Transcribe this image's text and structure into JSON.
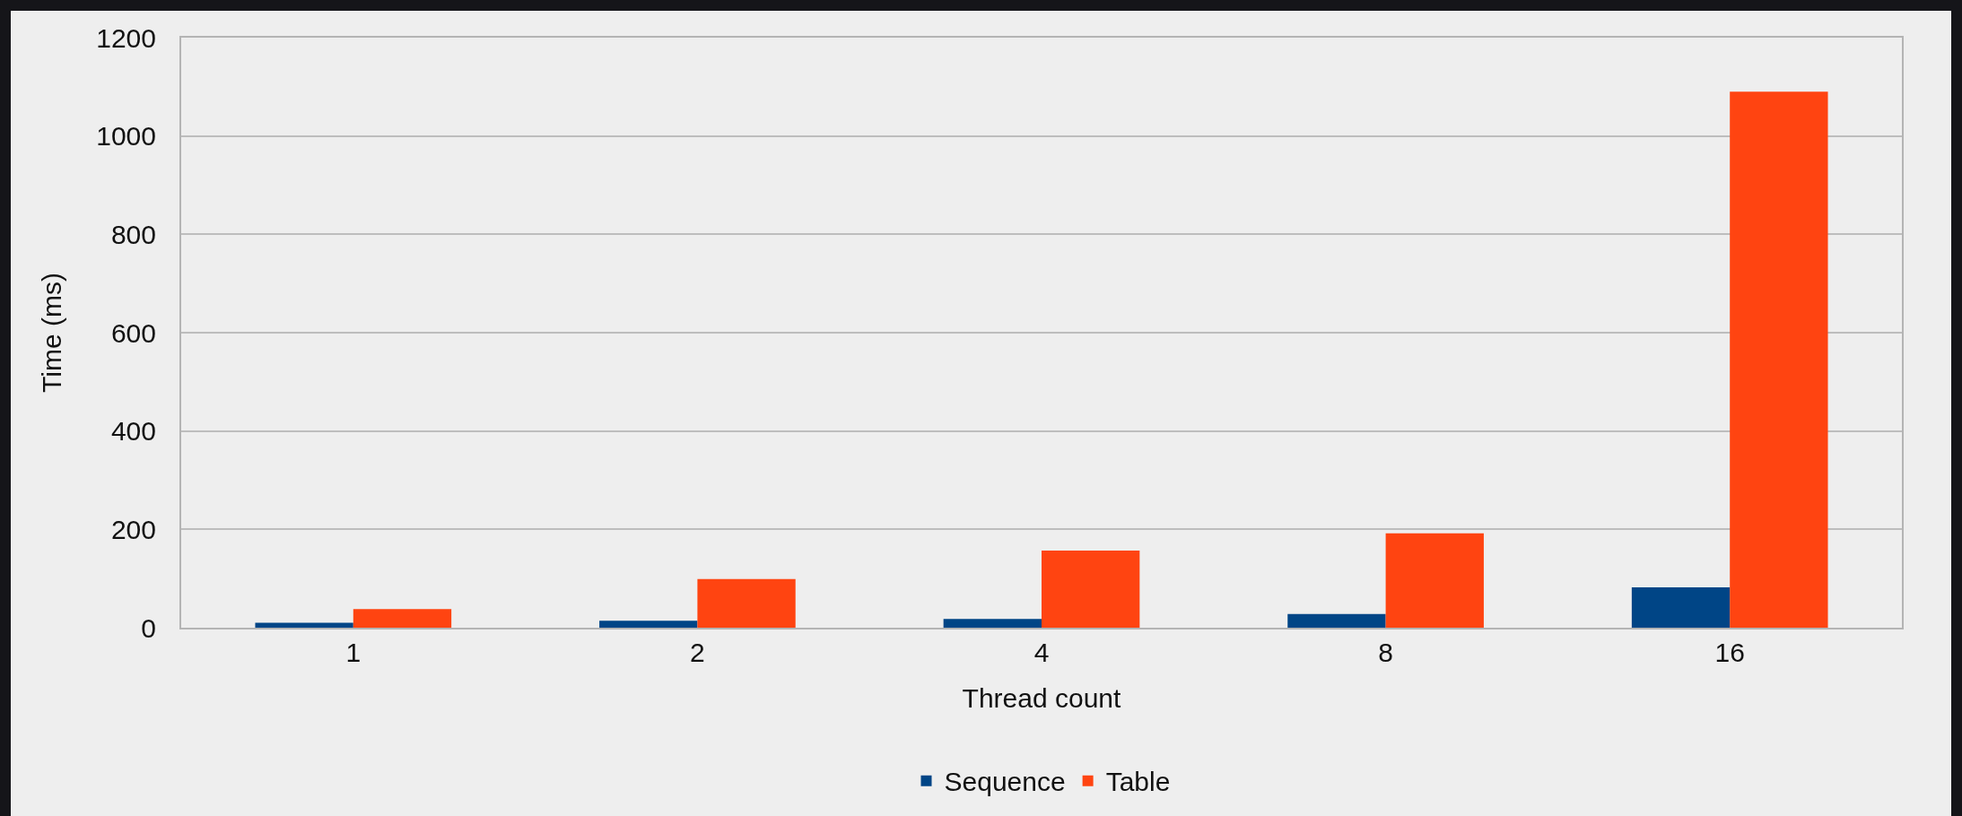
{
  "chart_data": {
    "type": "bar",
    "xlabel": "Thread count",
    "ylabel": "Time (ms)",
    "categories": [
      "1",
      "2",
      "4",
      "8",
      "16"
    ],
    "series": [
      {
        "name": "Sequence",
        "color": "#004586",
        "values": [
          10,
          14,
          18,
          28,
          82
        ]
      },
      {
        "name": "Table",
        "color": "#ff4411",
        "values": [
          38,
          99,
          157,
          192,
          1090
        ]
      }
    ],
    "ylim": [
      0,
      1200
    ],
    "yticks": [
      0,
      200,
      400,
      600,
      800,
      1000,
      1200
    ],
    "grid": "y",
    "legend": "bottom"
  }
}
